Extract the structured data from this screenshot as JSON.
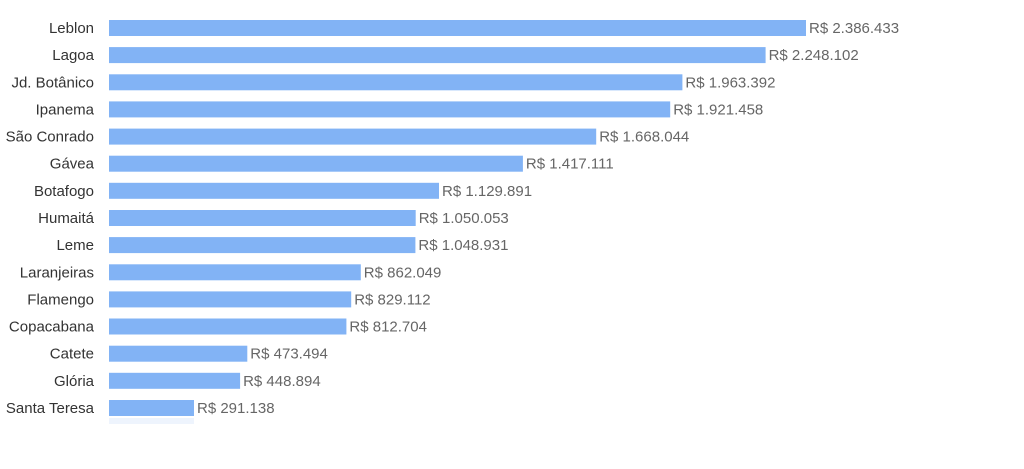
{
  "colors": {
    "bar": "#82b3f5",
    "axis_band": "#eef4fd",
    "category_text": "#333333",
    "value_text": "#666666"
  },
  "chart_data": {
    "type": "bar",
    "orientation": "horizontal",
    "title": "",
    "xlabel": "",
    "ylabel": "",
    "grid": false,
    "legend": "none",
    "xlim": [
      0,
      3500000
    ],
    "categories": [
      "Leblon",
      "Lagoa",
      "Jd. Botânico",
      "Ipanema",
      "São Conrado",
      "Gávea",
      "Botafogo",
      "Humaitá",
      "Leme",
      "Laranjeiras",
      "Flamengo",
      "Copacabana",
      "Catete",
      "Glória",
      "Santa Teresa"
    ],
    "values": [
      2386433,
      2248102,
      1963392,
      1921458,
      1668044,
      1417111,
      1129891,
      1050053,
      1048931,
      862049,
      829112,
      812704,
      473494,
      448894,
      291138
    ],
    "value_labels": [
      "R$ 2.386.433",
      "R$ 2.248.102",
      "R$ 1.963.392",
      "R$ 1.921.458",
      "R$ 1.668.044",
      "R$ 1.417.111",
      "R$ 1.129.891",
      "R$ 1.050.053",
      "R$ 1.048.931",
      "R$ 862.049",
      "R$ 829.112",
      "R$ 812.704",
      "R$ 473.494",
      "R$ 448.894",
      "R$ 291.138"
    ]
  }
}
